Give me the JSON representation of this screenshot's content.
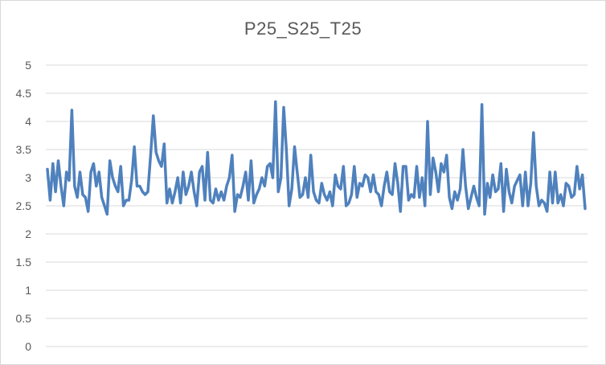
{
  "chart_data": {
    "type": "line",
    "title": "P25_S25_T25",
    "xlabel": "",
    "ylabel": "",
    "ylim": [
      0,
      5
    ],
    "yticks": [
      "0",
      "0.5",
      "1",
      "1.5",
      "2",
      "2.5",
      "3",
      "3.5",
      "4",
      "4.5",
      "5"
    ],
    "grid": true,
    "legend": "none",
    "series": [
      {
        "color": "#4f81bd",
        "values": [
          3.15,
          2.6,
          3.25,
          2.75,
          3.3,
          2.85,
          2.5,
          3.1,
          2.95,
          4.2,
          2.85,
          2.65,
          3.1,
          2.7,
          2.65,
          2.4,
          3.1,
          3.25,
          2.85,
          3.1,
          2.65,
          2.5,
          2.35,
          3.3,
          3.0,
          2.85,
          2.75,
          3.2,
          2.5,
          2.6,
          2.6,
          2.95,
          3.55,
          2.85,
          2.85,
          2.75,
          2.7,
          2.75,
          3.4,
          4.1,
          3.45,
          3.3,
          3.2,
          3.6,
          2.55,
          2.8,
          2.55,
          2.75,
          3.0,
          2.55,
          3.1,
          2.7,
          2.85,
          3.1,
          2.75,
          2.5,
          3.1,
          3.2,
          2.6,
          3.45,
          2.6,
          2.55,
          2.8,
          2.6,
          2.75,
          2.6,
          2.85,
          3.0,
          3.4,
          2.4,
          2.7,
          2.65,
          2.85,
          3.1,
          2.6,
          3.3,
          2.55,
          2.7,
          2.8,
          3.0,
          2.85,
          3.2,
          3.25,
          3.0,
          4.35,
          2.75,
          3.0,
          4.25,
          3.5,
          2.5,
          2.8,
          3.55,
          3.1,
          2.65,
          2.7,
          3.0,
          2.65,
          3.4,
          2.75,
          2.6,
          2.55,
          2.9,
          2.7,
          2.6,
          2.75,
          2.5,
          3.05,
          2.85,
          2.8,
          3.2,
          2.5,
          2.55,
          2.7,
          3.2,
          2.65,
          2.9,
          2.85,
          3.05,
          3.0,
          2.75,
          3.05,
          2.75,
          2.7,
          2.5,
          2.85,
          3.1,
          2.75,
          2.7,
          3.25,
          2.9,
          2.4,
          3.2,
          3.2,
          2.6,
          2.7,
          2.65,
          3.2,
          2.65,
          3.0,
          2.5,
          4.0,
          2.7,
          3.35,
          3.1,
          2.75,
          3.25,
          3.1,
          3.4,
          2.65,
          2.45,
          2.75,
          2.6,
          2.8,
          3.5,
          2.85,
          2.45,
          2.65,
          2.85,
          2.65,
          2.5,
          4.3,
          2.35,
          2.9,
          2.65,
          3.05,
          2.75,
          2.8,
          3.25,
          2.4,
          3.15,
          2.75,
          2.55,
          2.85,
          2.95,
          3.05,
          2.5,
          3.1,
          2.5,
          2.9,
          3.8,
          2.85,
          2.5,
          2.6,
          2.55,
          2.4,
          3.1,
          2.55,
          3.1,
          2.55,
          2.7,
          2.5,
          2.9,
          2.85,
          2.65,
          2.7,
          3.2,
          2.8,
          3.05,
          2.45
        ]
      }
    ]
  }
}
